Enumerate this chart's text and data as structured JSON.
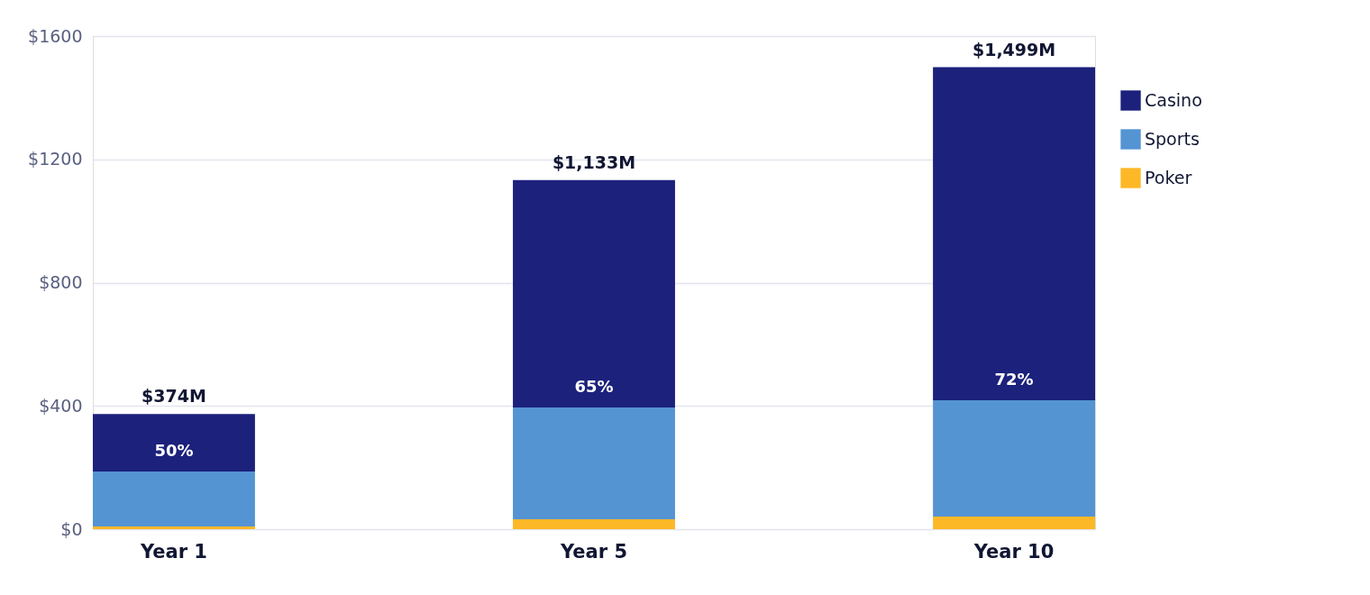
{
  "chart_data": {
    "type": "bar",
    "stacked": true,
    "categories": [
      "Year 1",
      "Year 5",
      "Year 10"
    ],
    "series": [
      {
        "name": "Poker",
        "color": "#fdb827",
        "values": [
          9,
          32,
          41
        ]
      },
      {
        "name": "Sports",
        "color": "#5494d3",
        "values": [
          178,
          363,
          377
        ]
      },
      {
        "name": "Casino",
        "color": "#1c217c",
        "values": [
          187,
          738,
          1081
        ]
      }
    ],
    "totals": [
      "$374M",
      "$1,133M",
      "$1,499M"
    ],
    "annotations": [
      "50%",
      "65%",
      "72%"
    ],
    "ylim": [
      0,
      1600
    ],
    "yticks": [
      {
        "value": 0,
        "label": "$0"
      },
      {
        "value": 400,
        "label": "$400"
      },
      {
        "value": 800,
        "label": "$800"
      },
      {
        "value": 1200,
        "label": "$1200"
      },
      {
        "value": 1600,
        "label": "$1600"
      }
    ],
    "grid": "y",
    "legend": "top right"
  }
}
